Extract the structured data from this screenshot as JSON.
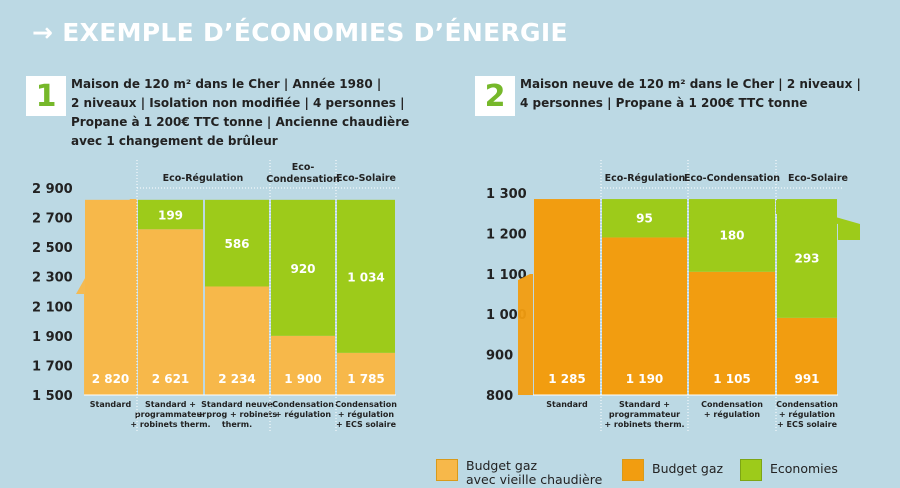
{
  "page": {
    "title": "EXEMPLE D’ÉCONOMIES D’ÉNERGIE",
    "colors": {
      "old": "#f7b84a",
      "budget": "#f29d10",
      "eco": "#9dcb1a",
      "bg": "#bcd9e4",
      "green": "#76b82a"
    }
  },
  "cases": [
    {
      "number": "1",
      "lines": [
        "Maison de 120 m² dans le Cher | Année 1980 |",
        "2 niveaux | Isolation non modifiée | 4 personnes |",
        "Propane à 1 200€ TTC tonne | Ancienne chaudière",
        "avec 1 changement de brûleur"
      ]
    },
    {
      "number": "2",
      "lines": [
        "Maison neuve de 120 m² dans le Cher | 2 niveaux |",
        "4 personnes | Propane à 1 200€ TTC tonne"
      ]
    }
  ],
  "chart_data": [
    {
      "type": "bar",
      "title": "Maison de 120 m² dans le Cher | Année 1980",
      "ylim": [
        1500,
        2900
      ],
      "yticks": [
        "2 900",
        "2 700",
        "2 500",
        "2 300",
        "2 100",
        "1 900",
        "1 700",
        "1 500"
      ],
      "ytick_values": [
        2900,
        2700,
        2500,
        2300,
        2100,
        1900,
        1700,
        1500
      ],
      "groups": [
        "Eco-Régulation",
        "Eco-Condensation",
        "Eco-Solaire"
      ],
      "categories": [
        "Standard",
        "Standard + programmateur + robinets therm.",
        "Standard neuve + prog + robinets therm.",
        "Condensation + régulation",
        "Condensation + régulation + ECS solaire"
      ],
      "category_lines": [
        [
          "Standard"
        ],
        [
          "Standard +",
          "programmateur",
          "+ robinets therm."
        ],
        [
          "Standard neuve",
          "+ prog + robinets",
          "therm."
        ],
        [
          "Condensation",
          "+ régulation"
        ],
        [
          "Condensation",
          "+ régulation",
          "+ ECS solaire"
        ]
      ],
      "series": [
        {
          "name": "Budget gaz avec vieille chaudière",
          "values": [
            2820,
            2621,
            2234,
            1900,
            1785
          ]
        },
        {
          "name": "Economies",
          "values": [
            0,
            199,
            586,
            920,
            1034
          ]
        }
      ],
      "value_labels": [
        "2 820",
        "2 621",
        "2 234",
        "1 900",
        "1 785"
      ],
      "saving_labels": [
        "",
        "199",
        "586",
        "920",
        "1 034"
      ]
    },
    {
      "type": "bar",
      "title": "Maison neuve de 120 m² dans le Cher",
      "ylim": [
        800,
        1300
      ],
      "yticks": [
        "1 300",
        "1 200",
        "1 100",
        "1 000",
        "900",
        "800"
      ],
      "ytick_values": [
        1300,
        1200,
        1100,
        1000,
        900,
        800
      ],
      "groups": [
        "Eco-Régulation",
        "Eco-Condensation",
        "Eco-Solaire"
      ],
      "categories": [
        "Standard",
        "Standard + programmateur + robinets therm.",
        "Condensation + régulation",
        "Condensation + régulation + ECS solaire"
      ],
      "category_lines": [
        [
          "Standard"
        ],
        [
          "Standard +",
          "programmateur",
          "+ robinets therm."
        ],
        [
          "Condensation",
          "+ régulation"
        ],
        [
          "Condensation",
          "+ régulation",
          "+ ECS solaire"
        ]
      ],
      "series": [
        {
          "name": "Budget gaz",
          "values": [
            1285,
            1190,
            1105,
            991
          ]
        },
        {
          "name": "Economies",
          "values": [
            0,
            95,
            180,
            293
          ]
        }
      ],
      "value_labels": [
        "1 285",
        "1 190",
        "1 105",
        "991"
      ],
      "saving_labels": [
        "",
        "95",
        "180",
        "293"
      ]
    }
  ],
  "legend": [
    {
      "label1": "Budget gaz",
      "label2": "avec vieille chaudière",
      "color": "#f7b84a"
    },
    {
      "label1": "Budget gaz",
      "label2": "",
      "color": "#f29d10"
    },
    {
      "label1": "Economies",
      "label2": "",
      "color": "#9dcb1a"
    }
  ]
}
